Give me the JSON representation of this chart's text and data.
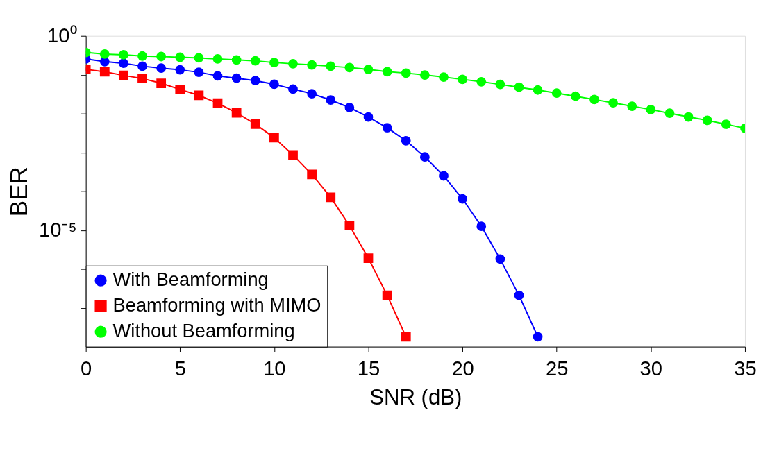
{
  "chart_data": {
    "type": "line",
    "xlabel": "SNR (dB)",
    "ylabel": "BER",
    "log": "y",
    "grid": false,
    "legend": "bottom left",
    "line_style": "solid",
    "xlim": [
      0,
      35
    ],
    "xticks": [
      0,
      5,
      10,
      15,
      20,
      25,
      30,
      35
    ],
    "ylim": [
      1e-08,
      1
    ],
    "yticks": [
      {
        "value": 1,
        "label": "10⁰"
      },
      {
        "value": 0.1,
        "label": null
      },
      {
        "value": 0.01,
        "label": null
      },
      {
        "value": 0.001,
        "label": null
      },
      {
        "value": 0.0001,
        "label": null
      },
      {
        "value": 1e-05,
        "label": "10⁻⁵"
      },
      {
        "value": 1e-06,
        "label": null
      },
      {
        "value": 1e-07,
        "label": null
      }
    ],
    "series": [
      {
        "name": "With Beamforming",
        "color": "#0000ff",
        "marker": "circle",
        "x": [
          0,
          1,
          2,
          3,
          4,
          5,
          6,
          7,
          8,
          9,
          10,
          11,
          12,
          13,
          14,
          15,
          16,
          17,
          18,
          19,
          20,
          21,
          22,
          23,
          24
        ],
        "values": [
          0.255,
          0.218,
          0.197,
          0.166,
          0.148,
          0.134,
          0.116,
          0.0935,
          0.0813,
          0.0705,
          0.0568,
          0.0427,
          0.0325,
          0.0224,
          0.0143,
          0.00815,
          0.00431,
          0.002,
          0.000766,
          0.000249,
          6.4e-05,
          1.26e-05,
          1.8e-06,
          2.1e-07,
          1.8e-08
        ]
      },
      {
        "name": "Beamforming with MIMO",
        "color": "#ff0000",
        "marker": "square",
        "x": [
          0,
          1,
          2,
          3,
          4,
          5,
          6,
          7,
          8,
          9,
          10,
          11,
          12,
          13,
          14,
          15,
          16,
          17
        ],
        "values": [
          0.138,
          0.119,
          0.0962,
          0.08,
          0.0603,
          0.042,
          0.0294,
          0.0186,
          0.0105,
          0.00535,
          0.0024,
          0.000857,
          0.000272,
          7e-05,
          1.31e-05,
          1.9e-06,
          2.1e-07,
          1.8e-08
        ]
      },
      {
        "name": "Without Beamforming",
        "color": "#00ff00",
        "marker": "circle",
        "x": [
          0,
          1,
          2,
          3,
          4,
          5,
          6,
          7,
          8,
          9,
          10,
          11,
          12,
          13,
          14,
          15,
          16,
          17,
          18,
          19,
          20,
          21,
          22,
          23,
          24,
          25,
          26,
          27,
          28,
          29,
          30,
          31,
          32,
          33,
          34,
          35
        ],
        "values": [
          0.376,
          0.34,
          0.326,
          0.303,
          0.294,
          0.282,
          0.271,
          0.255,
          0.241,
          0.228,
          0.206,
          0.192,
          0.179,
          0.166,
          0.153,
          0.137,
          0.12,
          0.11,
          0.0986,
          0.0871,
          0.076,
          0.0661,
          0.0565,
          0.0478,
          0.0404,
          0.0336,
          0.0279,
          0.0231,
          0.0189,
          0.0155,
          0.0127,
          0.0102,
          0.0082,
          0.0067,
          0.0053,
          0.0042
        ]
      }
    ]
  }
}
